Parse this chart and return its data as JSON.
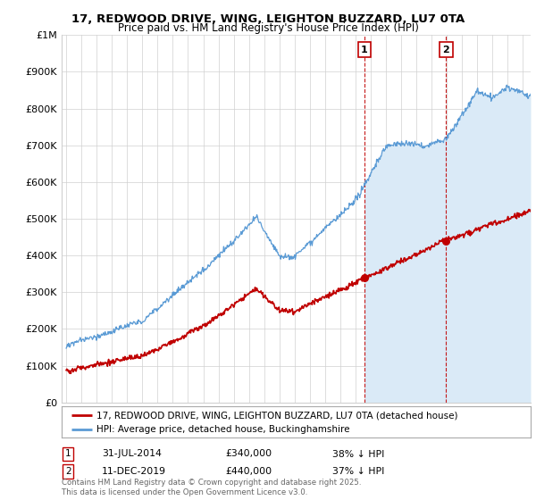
{
  "title": "17, REDWOOD DRIVE, WING, LEIGHTON BUZZARD, LU7 0TA",
  "subtitle": "Price paid vs. HM Land Registry's House Price Index (HPI)",
  "legend_line1": "17, REDWOOD DRIVE, WING, LEIGHTON BUZZARD, LU7 0TA (detached house)",
  "legend_line2": "HPI: Average price, detached house, Buckinghamshire",
  "footer": "Contains HM Land Registry data © Crown copyright and database right 2025.\nThis data is licensed under the Open Government Licence v3.0.",
  "point1_label": "1",
  "point1_date": "31-JUL-2014",
  "point1_price": "£340,000",
  "point1_note": "38% ↓ HPI",
  "point1_year": 2014.58,
  "point1_value": 340000,
  "point2_label": "2",
  "point2_date": "11-DEC-2019",
  "point2_price": "£440,000",
  "point2_note": "37% ↓ HPI",
  "point2_year": 2019.95,
  "point2_value": 440000,
  "vline1_x": 2014.58,
  "vline2_x": 2019.95,
  "hpi_color": "#5b9bd5",
  "hpi_fill_color": "#daeaf7",
  "price_color": "#c00000",
  "vline_color": "#c00000",
  "background_color": "#ffffff",
  "grid_color": "#d0d0d0",
  "ylim": [
    0,
    1000000
  ],
  "xlim": [
    1994.7,
    2025.5
  ],
  "yticks": [
    0,
    100000,
    200000,
    300000,
    400000,
    500000,
    600000,
    700000,
    800000,
    900000,
    1000000
  ],
  "ytick_labels": [
    "£0",
    "£100K",
    "£200K",
    "£300K",
    "£400K",
    "£500K",
    "£600K",
    "£700K",
    "£800K",
    "£900K",
    "£1M"
  ],
  "xticks": [
    1995,
    1996,
    1997,
    1998,
    1999,
    2000,
    2001,
    2002,
    2003,
    2004,
    2005,
    2006,
    2007,
    2008,
    2009,
    2010,
    2011,
    2012,
    2013,
    2014,
    2015,
    2016,
    2017,
    2018,
    2019,
    2020,
    2021,
    2022,
    2023,
    2024,
    2025
  ]
}
